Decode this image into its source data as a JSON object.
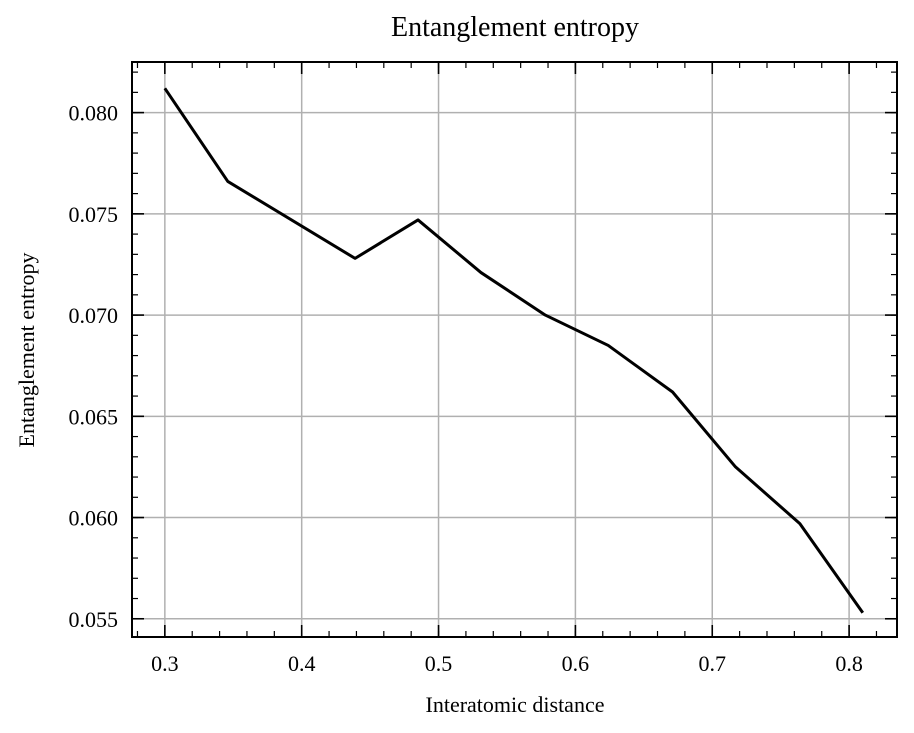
{
  "chart_data": {
    "type": "line",
    "title": "Entanglement entropy",
    "xlabel": "Interatomic distance",
    "ylabel": "Entanglement entropy",
    "xlim": [
      0.276,
      0.835
    ],
    "ylim": [
      0.0541,
      0.0825
    ],
    "xticks": [
      0.3,
      0.4,
      0.5,
      0.6,
      0.7,
      0.8
    ],
    "xtick_labels": [
      "0.3",
      "0.4",
      "0.5",
      "0.6",
      "0.7",
      "0.8"
    ],
    "yticks": [
      0.055,
      0.06,
      0.065,
      0.07,
      0.075,
      0.08
    ],
    "ytick_labels": [
      "0.055",
      "0.060",
      "0.065",
      "0.070",
      "0.075",
      "0.080"
    ],
    "grid": true,
    "line_color": "#000000",
    "grid_color": "#b0b0b0",
    "series": [
      {
        "x": [
          0.3,
          0.346,
          0.439,
          0.485,
          0.531,
          0.578,
          0.624,
          0.671,
          0.717,
          0.764,
          0.81
        ],
        "values": [
          0.0812,
          0.0766,
          0.0728,
          0.0747,
          0.0721,
          0.07,
          0.0685,
          0.0662,
          0.0625,
          0.0597,
          0.0553
        ]
      }
    ]
  }
}
